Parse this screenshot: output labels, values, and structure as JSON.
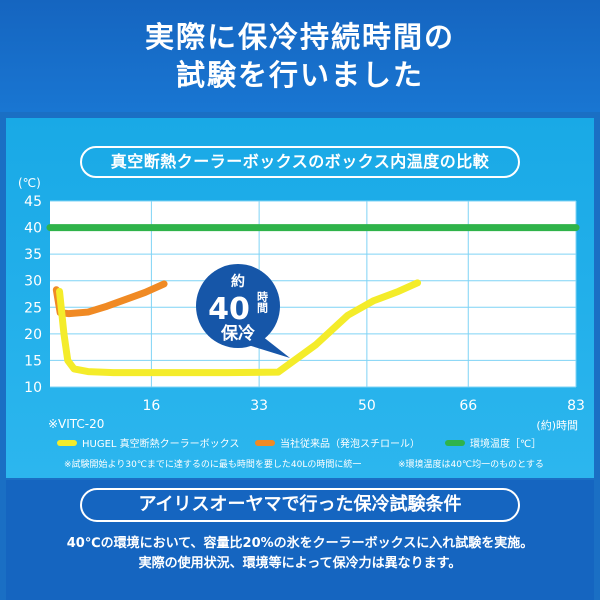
{
  "headline": {
    "line1": "実際に保冷持続時間の",
    "line2": "試験を行いました"
  },
  "chart_data": {
    "type": "line",
    "title": "真空断熱クーラーボックスのボックス内温度の比較",
    "ylabel": "(℃)",
    "xlabel": "(約)時間",
    "ylim": [
      10,
      45
    ],
    "yticks": [
      10,
      15,
      20,
      25,
      30,
      35,
      40,
      45
    ],
    "xticks": [
      16,
      33,
      50,
      66,
      83
    ],
    "xlim": [
      0,
      83
    ],
    "grid": true,
    "model_label": "※VITC-20",
    "series": [
      {
        "name": "HUGEL 真空断熱クーラーボックス",
        "color": "#f4ec2a",
        "points": [
          [
            1.5,
            28
          ],
          [
            2.2,
            20
          ],
          [
            2.8,
            15
          ],
          [
            3.8,
            13.4
          ],
          [
            6,
            12.9
          ],
          [
            10,
            12.7
          ],
          [
            20,
            12.7
          ],
          [
            28,
            12.7
          ],
          [
            36,
            12.8
          ],
          [
            42,
            18
          ],
          [
            47,
            23.5
          ],
          [
            51,
            26.2
          ],
          [
            55,
            28
          ],
          [
            58,
            29.6
          ]
        ]
      },
      {
        "name": "当社従来品（発泡スチロール）",
        "color": "#f08a24",
        "points": [
          [
            1,
            28.3
          ],
          [
            1.6,
            24
          ],
          [
            3,
            23.8
          ],
          [
            6,
            24.1
          ],
          [
            9,
            25.2
          ],
          [
            12,
            26.5
          ],
          [
            15,
            27.8
          ],
          [
            18,
            29.4
          ]
        ]
      },
      {
        "name": "環境温度［℃］",
        "color": "#2fb34a",
        "points": [
          [
            0,
            40
          ],
          [
            83,
            40
          ]
        ]
      }
    ],
    "annotation": {
      "top": "約",
      "big": "40",
      "side": "時間",
      "bottom": "保冷"
    }
  },
  "footnotes": {
    "left": "※試験開始より30℃までに達するのに最も時間を要した40Lの時間に統一",
    "right": "※環境温度は40℃均一のものとする"
  },
  "conditions": {
    "title": "アイリスオーヤマで行った保冷試験条件",
    "line1": "40℃の環境において、容量比20%の氷をクーラーボックスに入れ試験を実施。",
    "line2": "実際の使用状況、環境等によって保冷力は異なります。"
  }
}
